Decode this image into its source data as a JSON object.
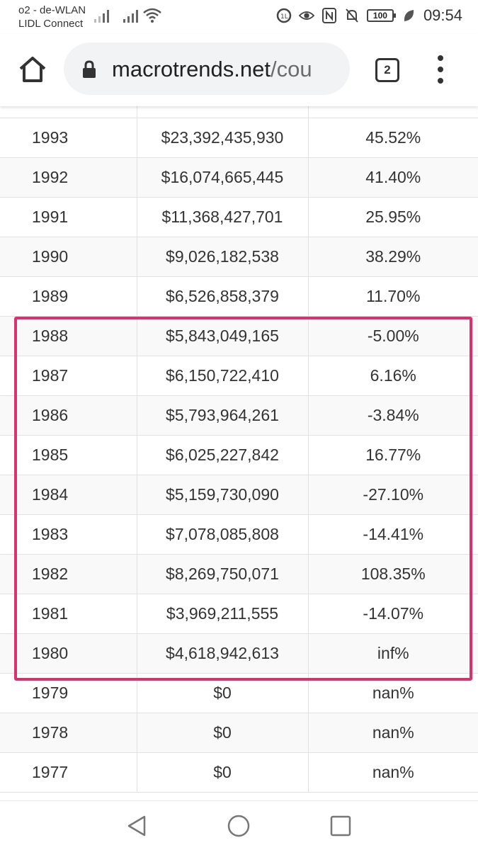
{
  "status_bar": {
    "carrier_line1": "o2 - de-WLAN",
    "carrier_line2": "LIDL Connect",
    "battery": "100",
    "time": "09:54",
    "icons": [
      "signal-icon",
      "signal-icon",
      "wifi-icon",
      "data-saver-icon",
      "eye-icon",
      "nfc-icon",
      "mute-icon",
      "battery-icon",
      "leaf-icon"
    ]
  },
  "browser": {
    "url_host": "macrotrends.net",
    "url_path": "/cou",
    "tab_count": "2"
  },
  "table": {
    "rows": [
      {
        "year": "1993",
        "gdp": "$23,392,435,930",
        "growth": "45.52%"
      },
      {
        "year": "1992",
        "gdp": "$16,074,665,445",
        "growth": "41.40%"
      },
      {
        "year": "1991",
        "gdp": "$11,368,427,701",
        "growth": "25.95%"
      },
      {
        "year": "1990",
        "gdp": "$9,026,182,538",
        "growth": "38.29%"
      },
      {
        "year": "1989",
        "gdp": "$6,526,858,379",
        "growth": "11.70%"
      },
      {
        "year": "1988",
        "gdp": "$5,843,049,165",
        "growth": "-5.00%"
      },
      {
        "year": "1987",
        "gdp": "$6,150,722,410",
        "growth": "6.16%"
      },
      {
        "year": "1986",
        "gdp": "$5,793,964,261",
        "growth": "-3.84%"
      },
      {
        "year": "1985",
        "gdp": "$6,025,227,842",
        "growth": "16.77%"
      },
      {
        "year": "1984",
        "gdp": "$5,159,730,090",
        "growth": "-27.10%"
      },
      {
        "year": "1983",
        "gdp": "$7,078,085,808",
        "growth": "-14.41%"
      },
      {
        "year": "1982",
        "gdp": "$8,269,750,071",
        "growth": "108.35%"
      },
      {
        "year": "1981",
        "gdp": "$3,969,211,555",
        "growth": "-14.07%"
      },
      {
        "year": "1980",
        "gdp": "$4,618,942,613",
        "growth": "inf%"
      },
      {
        "year": "1979",
        "gdp": "$0",
        "growth": "nan%"
      },
      {
        "year": "1978",
        "gdp": "$0",
        "growth": "nan%"
      },
      {
        "year": "1977",
        "gdp": "$0",
        "growth": "nan%"
      }
    ]
  },
  "colors": {
    "highlight": "#d9326f"
  }
}
